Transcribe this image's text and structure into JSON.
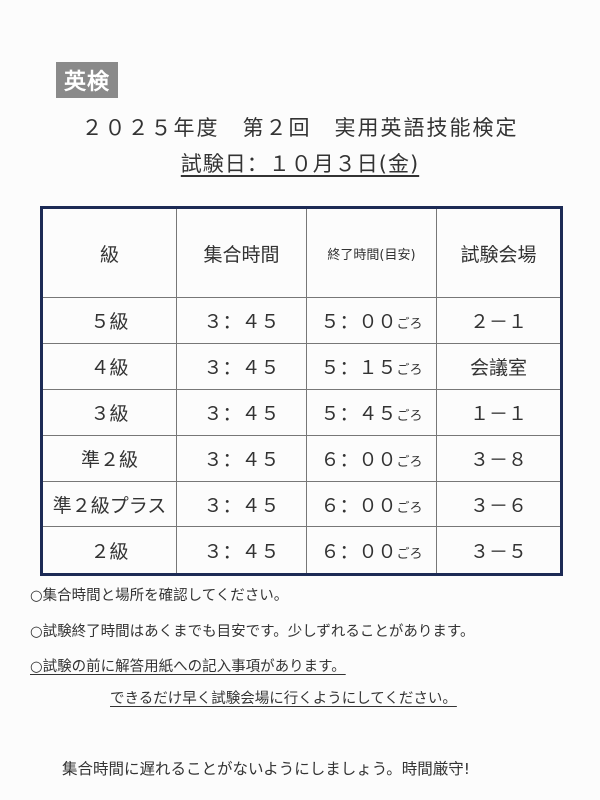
{
  "badge": "英検",
  "title": "２０２５年度　第２回　実用英語技能検定",
  "exam_date": "試験日：１０月３日(金)",
  "table": {
    "headers": [
      "級",
      "集合時間",
      "終了時間(目安)",
      "試験会場"
    ],
    "rows": [
      {
        "grade": "５級",
        "gather": "３：４５",
        "end": "５：００",
        "suffix": "ごろ",
        "room": "２－１"
      },
      {
        "grade": "４級",
        "gather": "３：４５",
        "end": "５：１５",
        "suffix": "ごろ",
        "room": "会議室"
      },
      {
        "grade": "３級",
        "gather": "３：４５",
        "end": "５：４５",
        "suffix": "ごろ",
        "room": "１－１"
      },
      {
        "grade": "準２級",
        "gather": "３：４５",
        "end": "６：００",
        "suffix": "ごろ",
        "room": "３－８"
      },
      {
        "grade": "準２級プラス",
        "gather": "３：４５",
        "end": "６：００",
        "suffix": "ごろ",
        "room": "３－６"
      },
      {
        "grade": "２級",
        "gather": "３：４５",
        "end": "６：００",
        "suffix": "ごろ",
        "room": "３－５"
      }
    ]
  },
  "notes": [
    "○集合時間と場所を確認してください。",
    "○試験終了時間はあくまでも目安です。少しずれることがあります。",
    "○試験の前に解答用紙への記入事項があります。",
    "できるだけ早く試験会場に行くようにしてください。"
  ],
  "footer": "集合時間に遅れることがないようにしましょう。時間厳守!"
}
